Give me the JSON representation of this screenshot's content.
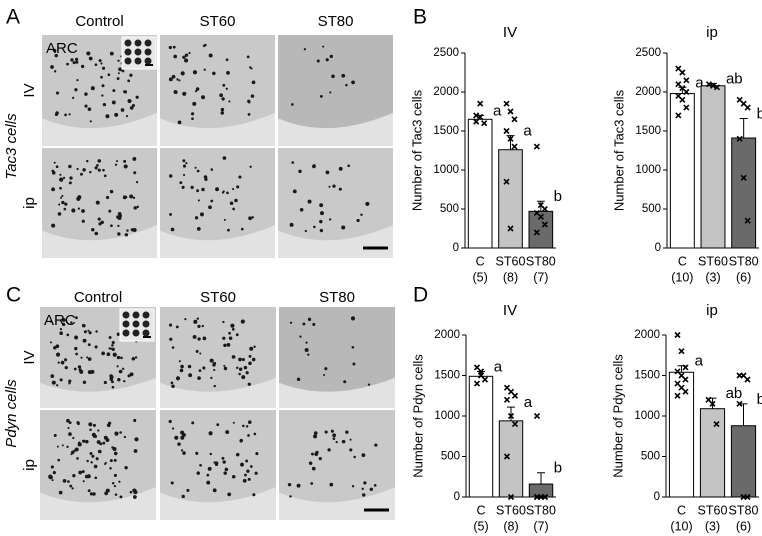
{
  "figure": {
    "panels": [
      "A",
      "B",
      "C",
      "D"
    ]
  },
  "micrographs": [
    {
      "columns": [
        "Control",
        "ST60",
        "ST80"
      ],
      "region": "ARC",
      "rows": [
        "IV",
        "ip"
      ],
      "ylabel": "Tac3 cells"
    },
    {
      "columns": [
        "Control",
        "ST60",
        "ST80"
      ],
      "region": "ARC",
      "rows": [
        "IV",
        "ip"
      ],
      "ylabel": "Pdyn cells"
    }
  ],
  "chart_data": [
    {
      "type": "bar",
      "title": "IV",
      "ylabel": "Number of Tac3 cells",
      "categories": [
        "C",
        "ST60",
        "ST80"
      ],
      "n_labels": [
        "(5)",
        "(8)",
        "(7)"
      ],
      "values": [
        1650,
        1260,
        470
      ],
      "errors": [
        50,
        180,
        130
      ],
      "letters": [
        "a",
        "a",
        "b"
      ],
      "points": [
        [
          1700,
          1850,
          1600,
          1620,
          1680
        ],
        [
          1850,
          1750,
          1650,
          1500,
          1400,
          1300,
          850,
          250
        ],
        [
          1300,
          550,
          500,
          450,
          400,
          300,
          200
        ]
      ],
      "colors": [
        "#ffffff",
        "#c4c4c4",
        "#6a6a6a"
      ],
      "ylim": [
        0,
        2500
      ],
      "yticks": [
        0,
        500,
        1000,
        1500,
        2000,
        2500
      ]
    },
    {
      "type": "bar",
      "title": "ip",
      "ylabel": "Number of Tac3 cells",
      "categories": [
        "C",
        "ST60",
        "ST80"
      ],
      "n_labels": [
        "(10)",
        "(3)",
        "(6)"
      ],
      "values": [
        1980,
        2080,
        1410
      ],
      "errors": [
        80,
        30,
        250
      ],
      "letters": [
        "a",
        "ab",
        "b"
      ],
      "points": [
        [
          2300,
          2250,
          2150,
          2100,
          2050,
          2000,
          1950,
          1900,
          1800,
          1700
        ],
        [
          2100,
          2080,
          2060
        ],
        [
          1900,
          1850,
          1800,
          1400,
          900,
          350
        ]
      ],
      "colors": [
        "#ffffff",
        "#c4c4c4",
        "#6a6a6a"
      ],
      "ylim": [
        0,
        2500
      ],
      "yticks": [
        0,
        500,
        1000,
        1500,
        2000,
        2500
      ]
    },
    {
      "type": "bar",
      "title": "IV",
      "ylabel": "Number of Pdyn cells",
      "categories": [
        "C",
        "ST60",
        "ST80"
      ],
      "n_labels": [
        "(5)",
        "(8)",
        "(7)"
      ],
      "values": [
        1490,
        940,
        160
      ],
      "errors": [
        60,
        170,
        140
      ],
      "letters": [
        "a",
        "a",
        "b"
      ],
      "points": [
        [
          1600,
          1500,
          1450,
          1400,
          1550
        ],
        [
          1350,
          1300,
          1250,
          1200,
          1000,
          900,
          500,
          0
        ],
        [
          1000,
          0,
          0,
          0,
          0,
          0,
          0
        ]
      ],
      "colors": [
        "#ffffff",
        "#c4c4c4",
        "#6a6a6a"
      ],
      "ylim": [
        0,
        2000
      ],
      "yticks": [
        0,
        500,
        1000,
        1500,
        2000
      ]
    },
    {
      "type": "bar",
      "title": "ip",
      "ylabel": "Number of Pdyn cells",
      "categories": [
        "C",
        "ST60",
        "ST80"
      ],
      "n_labels": [
        "(10)",
        "(3)",
        "(6)"
      ],
      "values": [
        1540,
        1090,
        880
      ],
      "errors": [
        80,
        130,
        270
      ],
      "letters": [
        "a",
        "ab",
        "b"
      ],
      "points": [
        [
          2000,
          1800,
          1600,
          1550,
          1500,
          1450,
          1400,
          1350,
          1300,
          1250
        ],
        [
          1200,
          1150,
          900
        ],
        [
          1500,
          1500,
          1450,
          1150,
          0,
          0
        ]
      ],
      "colors": [
        "#ffffff",
        "#c4c4c4",
        "#6a6a6a"
      ],
      "ylim": [
        0,
        2000
      ],
      "yticks": [
        0,
        500,
        1000,
        1500,
        2000
      ]
    }
  ]
}
